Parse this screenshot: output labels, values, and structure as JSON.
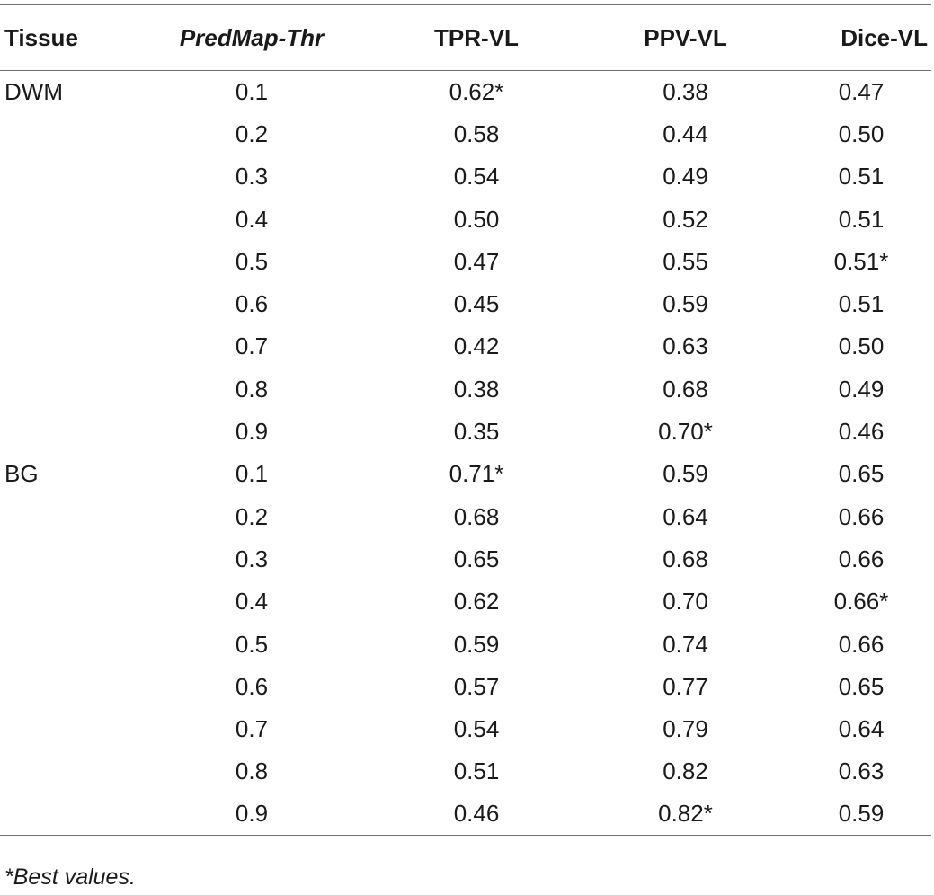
{
  "table": {
    "headers": {
      "tissue": "Tissue",
      "thr": "PredMap-Thr",
      "tpr": "TPR-VL",
      "ppv": "PPV-VL",
      "dice": "Dice-VL"
    },
    "rows": [
      {
        "tissue": "DWM",
        "thr": "0.1",
        "tpr": "0.62*",
        "ppv": "0.38",
        "dice": "0.47"
      },
      {
        "tissue": "",
        "thr": "0.2",
        "tpr": "0.58",
        "ppv": "0.44",
        "dice": "0.50"
      },
      {
        "tissue": "",
        "thr": "0.3",
        "tpr": "0.54",
        "ppv": "0.49",
        "dice": "0.51"
      },
      {
        "tissue": "",
        "thr": "0.4",
        "tpr": "0.50",
        "ppv": "0.52",
        "dice": "0.51"
      },
      {
        "tissue": "",
        "thr": "0.5",
        "tpr": "0.47",
        "ppv": "0.55",
        "dice": "0.51*"
      },
      {
        "tissue": "",
        "thr": "0.6",
        "tpr": "0.45",
        "ppv": "0.59",
        "dice": "0.51"
      },
      {
        "tissue": "",
        "thr": "0.7",
        "tpr": "0.42",
        "ppv": "0.63",
        "dice": "0.50"
      },
      {
        "tissue": "",
        "thr": "0.8",
        "tpr": "0.38",
        "ppv": "0.68",
        "dice": "0.49"
      },
      {
        "tissue": "",
        "thr": "0.9",
        "tpr": "0.35",
        "ppv": "0.70*",
        "dice": "0.46"
      },
      {
        "tissue": "BG",
        "thr": "0.1",
        "tpr": "0.71*",
        "ppv": "0.59",
        "dice": "0.65"
      },
      {
        "tissue": "",
        "thr": "0.2",
        "tpr": "0.68",
        "ppv": "0.64",
        "dice": "0.66"
      },
      {
        "tissue": "",
        "thr": "0.3",
        "tpr": "0.65",
        "ppv": "0.68",
        "dice": "0.66"
      },
      {
        "tissue": "",
        "thr": "0.4",
        "tpr": "0.62",
        "ppv": "0.70",
        "dice": "0.66*"
      },
      {
        "tissue": "",
        "thr": "0.5",
        "tpr": "0.59",
        "ppv": "0.74",
        "dice": "0.66"
      },
      {
        "tissue": "",
        "thr": "0.6",
        "tpr": "0.57",
        "ppv": "0.77",
        "dice": "0.65"
      },
      {
        "tissue": "",
        "thr": "0.7",
        "tpr": "0.54",
        "ppv": "0.79",
        "dice": "0.64"
      },
      {
        "tissue": "",
        "thr": "0.8",
        "tpr": "0.51",
        "ppv": "0.82",
        "dice": "0.63"
      },
      {
        "tissue": "",
        "thr": "0.9",
        "tpr": "0.46",
        "ppv": "0.82*",
        "dice": "0.59"
      }
    ]
  },
  "footnote": "*Best values."
}
